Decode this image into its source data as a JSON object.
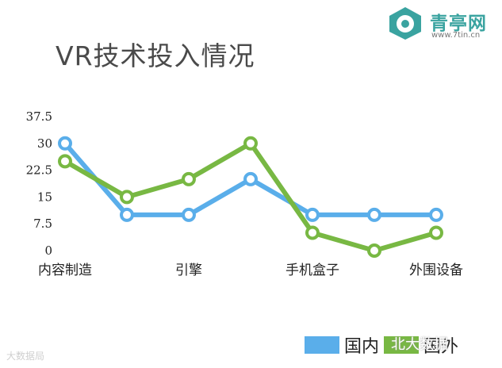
{
  "header": {
    "title": "VR技术投入情况"
  },
  "logo": {
    "name": "青亭网",
    "url": "www.7tin.cn"
  },
  "watermarks": {
    "left": "大数据局",
    "right": "北大数据"
  },
  "colors": {
    "domestic": "#5aaeea",
    "foreign": "#78b843"
  },
  "chart_data": {
    "type": "line",
    "title": "VR技术投入情况",
    "xlabel": "",
    "ylabel": "",
    "categories": [
      "内容制造",
      "",
      "引擎",
      "",
      "手机盒子",
      "",
      "外围设备"
    ],
    "x_tick_labels": [
      "内容制造",
      "引擎",
      "手机盒子",
      "外围设备"
    ],
    "y_tick_labels": [
      "0",
      "7.5",
      "15",
      "22.5",
      "30",
      "37.5"
    ],
    "ylim": [
      0,
      37.5
    ],
    "grid": false,
    "legend_position": "bottom-right",
    "series": [
      {
        "name": "国内",
        "color": "#5aaeea",
        "values": [
          30,
          10,
          10,
          20,
          10,
          10,
          10
        ]
      },
      {
        "name": "国外",
        "color": "#78b843",
        "values": [
          25,
          15,
          20,
          30,
          5,
          0,
          5
        ]
      }
    ]
  }
}
